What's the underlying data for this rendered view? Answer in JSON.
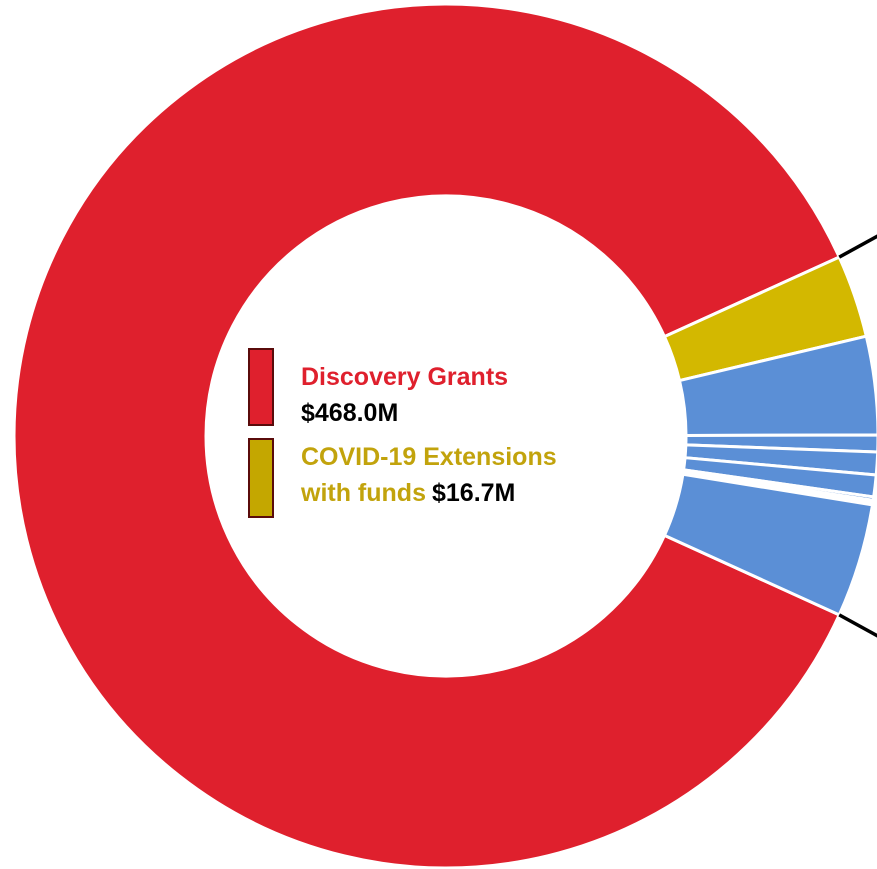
{
  "colors": {
    "discovery": "#df202d",
    "covid": "#d3b800",
    "other": "#5b8fd6",
    "legend_covid_swatch": "#c4a700",
    "legend_covid_text": "#c2a30c"
  },
  "legend": {
    "discovery_label": "Discovery Grants",
    "discovery_value": "$468.0M",
    "covid_label_line1": "COVID-19 Extensions",
    "covid_label_line2": "with funds",
    "covid_value": "$16.7M"
  },
  "chart_data": {
    "type": "pie",
    "variant": "donut",
    "title": "",
    "unit": "$M",
    "slices": [
      {
        "name": "Discovery Grants",
        "value": 468.0,
        "color": "discovery"
      },
      {
        "name": "COVID-19 Extensions with funds",
        "value": 16.7,
        "color": "covid"
      },
      {
        "name": "",
        "value": 19.9,
        "color": "other"
      },
      {
        "name": "",
        "value": 3.4,
        "color": "other"
      },
      {
        "name": "",
        "value": 4.6,
        "color": "other"
      },
      {
        "name": "",
        "value": 4.4,
        "color": "other"
      },
      {
        "name": "",
        "value": 0.7,
        "color": "other"
      },
      {
        "name": "",
        "value": 0.5,
        "color": "other"
      },
      {
        "name": "",
        "value": 0.4,
        "color": "other"
      },
      {
        "name": "",
        "value": 23.0,
        "color": "other"
      }
    ],
    "zoom_group": {
      "from_slice": 1,
      "to_slice": 9
    }
  }
}
